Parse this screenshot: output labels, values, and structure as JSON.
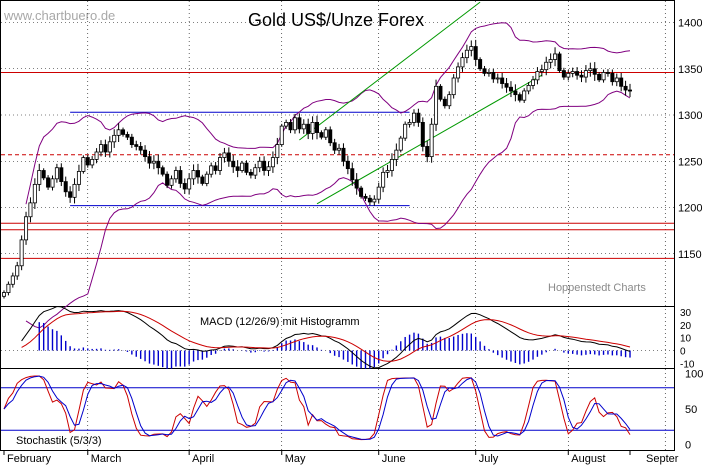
{
  "watermark": "www.chartbuero.de",
  "credit": "Hoppenstedt Charts",
  "chart_data": {
    "title": "Gold US$/Unze Forex",
    "type": "candlestick",
    "unit": "US$/oz",
    "x_months": [
      "February",
      "March",
      "April",
      "May",
      "June",
      "July",
      "August",
      "Septer"
    ],
    "price_panel": {
      "ylim": [
        1100,
        1420
      ],
      "yticks": [
        1150,
        1200,
        1250,
        1300,
        1350,
        1400
      ],
      "closes": [
        1108,
        1117,
        1126,
        1137,
        1165,
        1190,
        1205,
        1225,
        1240,
        1232,
        1222,
        1231,
        1243,
        1228,
        1217,
        1211,
        1225,
        1239,
        1254,
        1246,
        1252,
        1260,
        1268,
        1260,
        1271,
        1278,
        1284,
        1279,
        1276,
        1268,
        1266,
        1262,
        1255,
        1248,
        1250,
        1243,
        1236,
        1224,
        1231,
        1240,
        1226,
        1220,
        1231,
        1240,
        1233,
        1226,
        1236,
        1245,
        1240,
        1254,
        1259,
        1250,
        1244,
        1240,
        1248,
        1238,
        1235,
        1243,
        1250,
        1240,
        1244,
        1254,
        1268,
        1288,
        1292,
        1284,
        1297,
        1285,
        1290,
        1280,
        1292,
        1281,
        1276,
        1284,
        1270,
        1262,
        1264,
        1250,
        1242,
        1230,
        1221,
        1212,
        1210,
        1206,
        1209,
        1222,
        1238,
        1240,
        1252,
        1262,
        1275,
        1290,
        1292,
        1302,
        1292,
        1266,
        1255,
        1290,
        1331,
        1317,
        1310,
        1322,
        1340,
        1352,
        1362,
        1370,
        1374,
        1360,
        1350,
        1345,
        1346,
        1339,
        1340,
        1334,
        1330,
        1326,
        1322,
        1316,
        1326,
        1332,
        1338,
        1347,
        1349,
        1357,
        1360,
        1366,
        1348,
        1341,
        1345,
        1347,
        1343,
        1341,
        1348,
        1350,
        1344,
        1338,
        1346,
        1345,
        1336,
        1340,
        1331,
        1327,
        1326
      ],
      "resistance_lines": [
        1346,
        1257
      ],
      "support_lines": [
        1183,
        1176,
        1145
      ],
      "horizontal_channel": {
        "upper": 1303,
        "lower": 1202
      },
      "trend_channel": {
        "start": [
          1273,
          1204
        ],
        "end": [
          1422,
          1343
        ]
      }
    },
    "macd_panel": {
      "label": "MACD (12/26/9) mit Histogramm",
      "ylim": [
        -12,
        33
      ],
      "yticks": [
        30,
        20,
        10,
        0,
        -10
      ]
    },
    "stochastic_panel": {
      "label": "Stochastik (5/3/3)",
      "ylim": [
        -5,
        105
      ],
      "yticks": [
        100,
        50,
        0
      ],
      "bands": [
        80,
        20
      ]
    }
  }
}
